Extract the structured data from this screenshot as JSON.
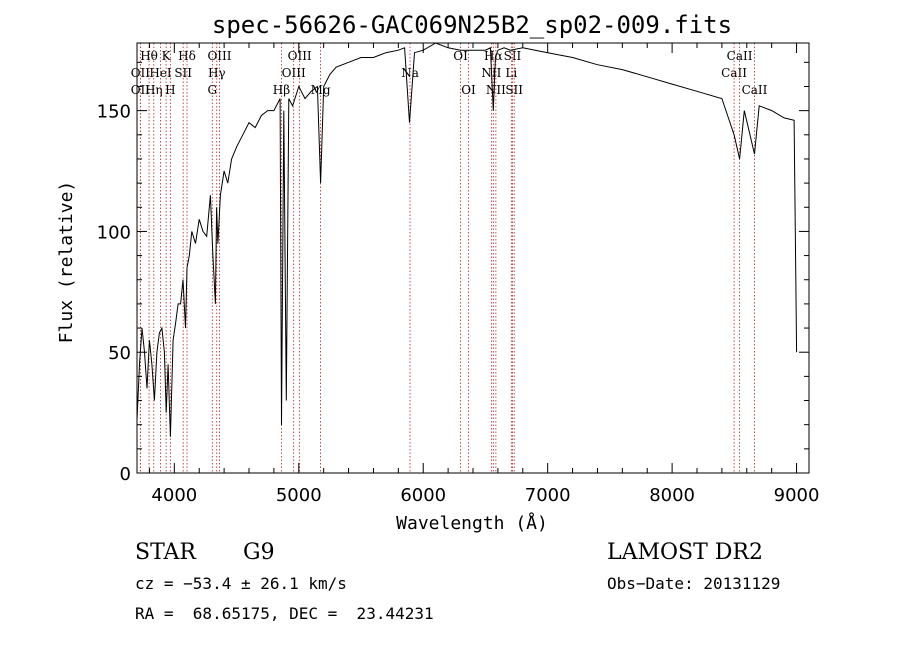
{
  "chart_data": {
    "type": "line",
    "title": "spec-56626-GAC069N25B2_sp02-009.fits",
    "xlabel": "Wavelength (Å)",
    "ylabel": "Flux (relative)",
    "xlim": [
      3700,
      9100
    ],
    "ylim": [
      0,
      178
    ],
    "x_ticks": [
      4000,
      5000,
      6000,
      7000,
      8000,
      9000
    ],
    "y_ticks": [
      0,
      50,
      100,
      150
    ],
    "grid": false,
    "series": [
      {
        "x": [
          3700,
          3720,
          3740,
          3760,
          3780,
          3800,
          3820,
          3840,
          3860,
          3880,
          3900,
          3920,
          3935,
          3950,
          3968,
          3990,
          4010,
          4030,
          4050,
          4070,
          4090,
          4102,
          4120,
          4140,
          4170,
          4200,
          4230,
          4260,
          4290,
          4310,
          4330,
          4340,
          4350,
          4370,
          4400,
          4430,
          4460,
          4500,
          4550,
          4600,
          4650,
          4700,
          4750,
          4800,
          4850,
          4861,
          4880,
          4900,
          4920,
          4950,
          5000,
          5050,
          5100,
          5150,
          5175,
          5200,
          5250,
          5300,
          5400,
          5500,
          5600,
          5700,
          5800,
          5850,
          5890,
          5930,
          6000,
          6100,
          6200,
          6300,
          6400,
          6500,
          6540,
          6563,
          6580,
          6600,
          6650,
          6700,
          6800,
          6900,
          7000,
          7200,
          7400,
          7600,
          7800,
          8000,
          8200,
          8400,
          8498,
          8542,
          8580,
          8662,
          8700,
          8800,
          8900,
          8980,
          9000
        ],
        "values": [
          22,
          45,
          60,
          50,
          35,
          55,
          45,
          30,
          50,
          58,
          60,
          50,
          25,
          45,
          15,
          55,
          62,
          70,
          70,
          80,
          60,
          85,
          90,
          100,
          95,
          105,
          100,
          98,
          115,
          90,
          70,
          110,
          95,
          115,
          125,
          120,
          130,
          135,
          140,
          145,
          143,
          148,
          150,
          150,
          155,
          20,
          150,
          30,
          155,
          152,
          160,
          155,
          158,
          160,
          120,
          160,
          165,
          168,
          170,
          172,
          172,
          174,
          175,
          176,
          145,
          174,
          175,
          178,
          176,
          175,
          175,
          175,
          176,
          150,
          172,
          175,
          176,
          175,
          176,
          175,
          174,
          172,
          169,
          167,
          164,
          161,
          158,
          155,
          140,
          130,
          150,
          132,
          152,
          150,
          147,
          146,
          50
        ]
      }
    ],
    "spectral_lines": [
      {
        "name": "OII",
        "x": 3727,
        "row": 2
      },
      {
        "name": "Hθ",
        "x": 3797,
        "row": 1
      },
      {
        "name": "OII",
        "x": 3727,
        "row": 3
      },
      {
        "name": "Hη",
        "x": 3835,
        "row": 3
      },
      {
        "name": "HeI",
        "x": 3889,
        "row": 2
      },
      {
        "name": "K",
        "x": 3934,
        "row": 1
      },
      {
        "name": "H",
        "x": 3968,
        "row": 3
      },
      {
        "name": "SII",
        "x": 4071,
        "row": 2
      },
      {
        "name": "Hδ",
        "x": 4102,
        "row": 1
      },
      {
        "name": "G",
        "x": 4305,
        "row": 3
      },
      {
        "name": "Hγ",
        "x": 4341,
        "row": 2
      },
      {
        "name": "OIII",
        "x": 4363,
        "row": 1
      },
      {
        "name": "Hβ",
        "x": 4861,
        "row": 3
      },
      {
        "name": "OIII",
        "x": 4959,
        "row": 2
      },
      {
        "name": "OIII",
        "x": 5007,
        "row": 1
      },
      {
        "name": "Mg",
        "x": 5175,
        "row": 3
      },
      {
        "name": "Na",
        "x": 5894,
        "row": 2
      },
      {
        "name": "OI",
        "x": 6300,
        "row": 1
      },
      {
        "name": "OI",
        "x": 6364,
        "row": 3
      },
      {
        "name": "NII",
        "x": 6548,
        "row": 2
      },
      {
        "name": "Hα",
        "x": 6563,
        "row": 1
      },
      {
        "name": "NII",
        "x": 6584,
        "row": 3
      },
      {
        "name": "Li",
        "x": 6708,
        "row": 2
      },
      {
        "name": "SII",
        "x": 6717,
        "row": 1
      },
      {
        "name": "SII",
        "x": 6731,
        "row": 3
      },
      {
        "name": "CaII",
        "x": 8498,
        "row": 2
      },
      {
        "name": "CaII",
        "x": 8542,
        "row": 1
      },
      {
        "name": "CaII",
        "x": 8662,
        "row": 3
      }
    ]
  },
  "info": {
    "object_class": "STAR",
    "subclass": "G9",
    "survey": "LAMOST DR2",
    "cz": "cz = −53.4 ± 26.1 km/s",
    "obs_date": "Obs−Date: 20131129",
    "coords": "RA =  68.65175, DEC =  23.44231"
  },
  "colors": {
    "spectrum": "#000000",
    "line_markers": "#b22222",
    "background": "#ffffff"
  }
}
